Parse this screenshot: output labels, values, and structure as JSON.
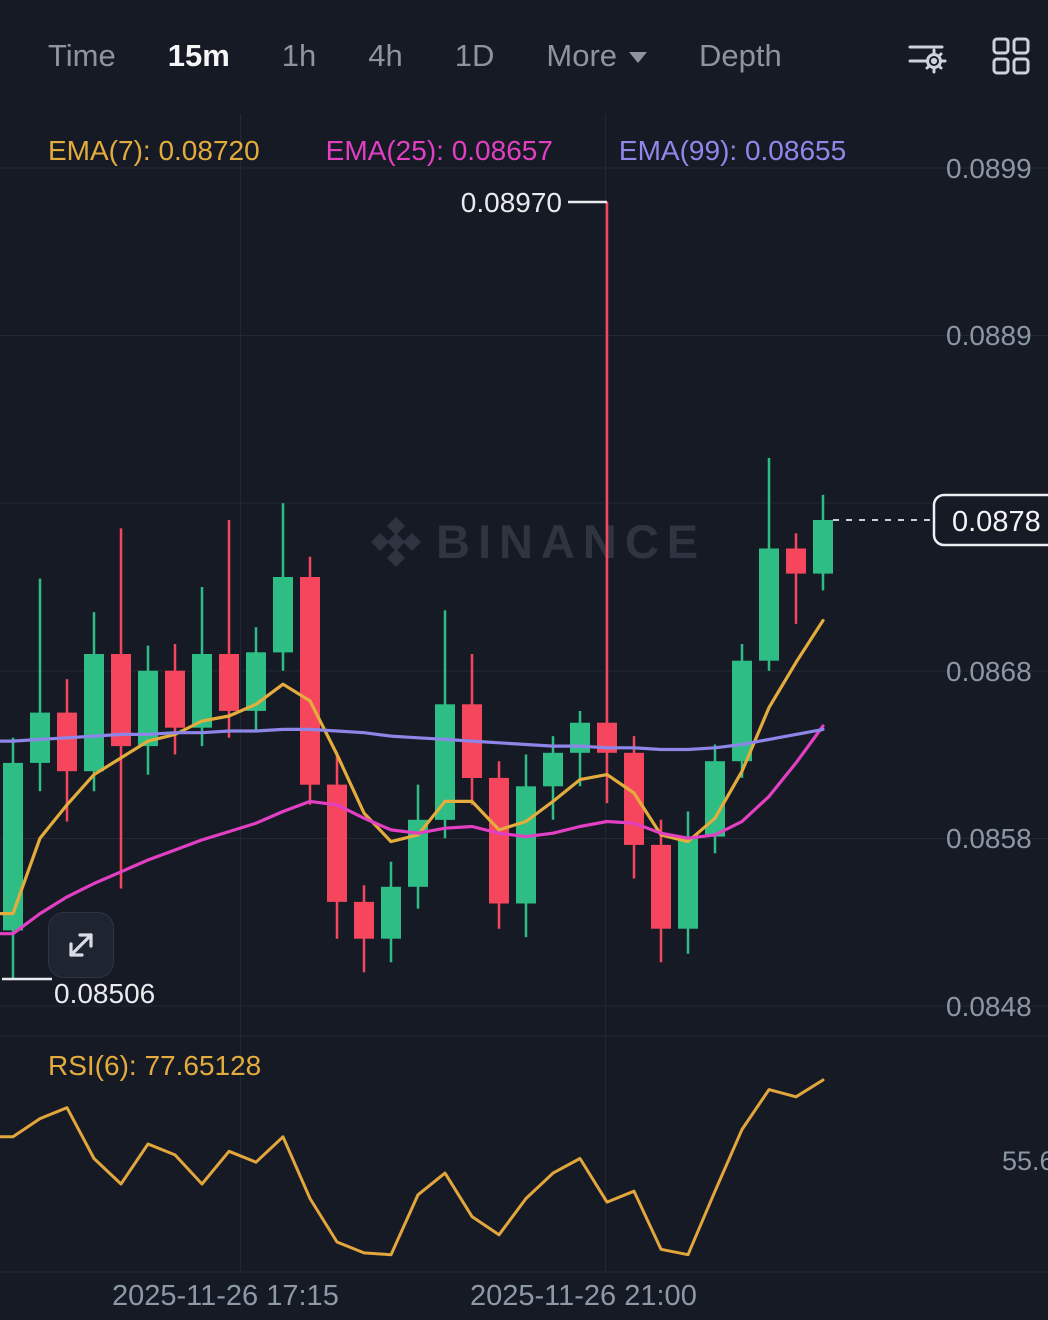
{
  "toolbar": {
    "tabs": [
      {
        "label": "Time"
      },
      {
        "label": "15m"
      },
      {
        "label": "1h"
      },
      {
        "label": "4h"
      },
      {
        "label": "1D"
      },
      {
        "label": "More"
      },
      {
        "label": "Depth"
      }
    ],
    "active_tab": "15m",
    "icons": [
      "indicator-settings-icon",
      "grid-layout-icon"
    ]
  },
  "legend": {
    "ema7": "EMA(7): 0.08720",
    "ema25": "EMA(25): 0.08657",
    "ema99": "EMA(99): 0.08655"
  },
  "watermark": {
    "text": "BINANCE"
  },
  "annotations": {
    "high": "0.08970",
    "low": "0.08506",
    "last_price": "0.0878"
  },
  "price_axis": {
    "labels": [
      "0.0899",
      "0.0889",
      "0.0868",
      "0.0858",
      "0.0848"
    ]
  },
  "time_axis": {
    "labels": [
      "2025-11-26 17:15",
      "2025-11-26 21:00"
    ]
  },
  "rsi": {
    "label": "RSI(6): 77.65128",
    "axis_label": "55.6",
    "last_value": 77.65128
  },
  "colors": {
    "up": "#2EBD85",
    "down": "#F6465D",
    "ema7": "#E3AC3C",
    "ema25": "#E23FC3",
    "ema99": "#8D85E8",
    "rsi": "#E2A63C",
    "grid": "#232834",
    "last_price_line": "#C9CED6",
    "background": "#161A25"
  },
  "chart_data": {
    "type": "candlestick",
    "interval": "15m",
    "title": "",
    "y_axis_ticks": [
      0.0899,
      0.0889,
      0.0868,
      0.0858,
      0.0848
    ],
    "x_ticks": [
      "2025-11-26 17:15",
      "2025-11-26 21:00"
    ],
    "high": 0.0897,
    "low": 0.08506,
    "last": 0.0878,
    "candles": [
      [
        0.08535,
        0.0865,
        0.08506,
        0.08635
      ],
      [
        0.08635,
        0.08745,
        0.08618,
        0.08665
      ],
      [
        0.08665,
        0.08685,
        0.086,
        0.0863
      ],
      [
        0.0863,
        0.08725,
        0.08618,
        0.087
      ],
      [
        0.087,
        0.08775,
        0.0856,
        0.08645
      ],
      [
        0.08645,
        0.08705,
        0.08628,
        0.0869
      ],
      [
        0.0869,
        0.08706,
        0.0864,
        0.08656
      ],
      [
        0.08656,
        0.0874,
        0.08645,
        0.087
      ],
      [
        0.087,
        0.0878,
        0.0865,
        0.08666
      ],
      [
        0.08666,
        0.08716,
        0.08655,
        0.08701
      ],
      [
        0.08701,
        0.0879,
        0.0869,
        0.08746
      ],
      [
        0.08746,
        0.08758,
        0.0861,
        0.08622
      ],
      [
        0.08622,
        0.0864,
        0.0853,
        0.08552
      ],
      [
        0.08552,
        0.08562,
        0.0851,
        0.0853
      ],
      [
        0.0853,
        0.08576,
        0.08516,
        0.08561
      ],
      [
        0.08561,
        0.08622,
        0.08548,
        0.08601
      ],
      [
        0.08601,
        0.08726,
        0.0859,
        0.0867
      ],
      [
        0.0867,
        0.087,
        0.0861,
        0.08626
      ],
      [
        0.08626,
        0.08636,
        0.08536,
        0.08551
      ],
      [
        0.08551,
        0.0864,
        0.08531,
        0.08621
      ],
      [
        0.08621,
        0.08651,
        0.08601,
        0.08641
      ],
      [
        0.08641,
        0.08666,
        0.08621,
        0.08659
      ],
      [
        0.08659,
        0.0897,
        0.08611,
        0.08641
      ],
      [
        0.08641,
        0.08651,
        0.08566,
        0.08586
      ],
      [
        0.08586,
        0.08601,
        0.08516,
        0.08536
      ],
      [
        0.08536,
        0.08606,
        0.08521,
        0.08591
      ],
      [
        0.08591,
        0.08646,
        0.08581,
        0.08636
      ],
      [
        0.08636,
        0.08706,
        0.08626,
        0.08696
      ],
      [
        0.08696,
        0.08817,
        0.0869,
        0.08763
      ],
      [
        0.08763,
        0.08772,
        0.08718,
        0.08748
      ],
      [
        0.08748,
        0.08795,
        0.08738,
        0.0878
      ]
    ],
    "series": [
      {
        "name": "EMA(7)",
        "values": [
          0.08545,
          0.0859,
          0.0861,
          0.08628,
          0.08638,
          0.08648,
          0.08652,
          0.0866,
          0.08663,
          0.0867,
          0.08682,
          0.08672,
          0.0864,
          0.08605,
          0.08588,
          0.08592,
          0.08612,
          0.08612,
          0.08595,
          0.086,
          0.08612,
          0.08625,
          0.08628,
          0.08617,
          0.08592,
          0.08588,
          0.08602,
          0.0863,
          0.08668,
          0.08695,
          0.0872
        ]
      },
      {
        "name": "EMA(25)",
        "values": [
          0.08533,
          0.08545,
          0.08555,
          0.08563,
          0.0857,
          0.08577,
          0.08583,
          0.08589,
          0.08594,
          0.08599,
          0.08606,
          0.08612,
          0.0861,
          0.08602,
          0.08595,
          0.08593,
          0.08596,
          0.08597,
          0.08593,
          0.08591,
          0.08593,
          0.08597,
          0.086,
          0.08599,
          0.08593,
          0.0859,
          0.08592,
          0.086,
          0.08615,
          0.08635,
          0.08657
        ]
      },
      {
        "name": "EMA(99)",
        "values": [
          0.08648,
          0.08649,
          0.0865,
          0.08651,
          0.08652,
          0.08652,
          0.08653,
          0.08653,
          0.08654,
          0.08654,
          0.08655,
          0.08655,
          0.08654,
          0.08653,
          0.08651,
          0.0865,
          0.08649,
          0.08648,
          0.08647,
          0.08646,
          0.08645,
          0.08645,
          0.08644,
          0.08644,
          0.08643,
          0.08643,
          0.08644,
          0.08646,
          0.08649,
          0.08652,
          0.08655
        ]
      }
    ],
    "rsi6": [
      62,
      67,
      70,
      56,
      49,
      60,
      57,
      49,
      58,
      55,
      62,
      45,
      33,
      30,
      29.5,
      46,
      52,
      40,
      35,
      45,
      52,
      56,
      44,
      47,
      31,
      29.5,
      47,
      64,
      75,
      73,
      77.65
    ]
  }
}
